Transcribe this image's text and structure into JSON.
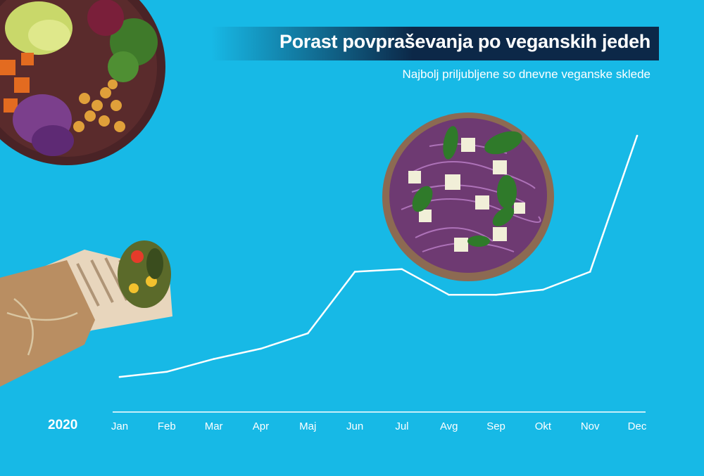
{
  "header": {
    "title": "Porast povpraševanja po veganskih jedeh",
    "subtitle": "Najbolj priljubljene so dnevne veganske sklede"
  },
  "year_label": "2020",
  "colors": {
    "background": "#17b9e6",
    "title_band": "#0c2848",
    "line": "#ffffff"
  },
  "chart_data": {
    "type": "line",
    "title": "Porast povpraševanja po veganskih jedeh",
    "subtitle": "Najbolj priljubljene so dnevne veganske sklede",
    "categories": [
      "Jan",
      "Feb",
      "Mar",
      "Apr",
      "Maj",
      "Jun",
      "Jul",
      "Avg",
      "Sep",
      "Okt",
      "Nov",
      "Dec"
    ],
    "series": [
      {
        "values": [
          6,
          8,
          13,
          17,
          23,
          47,
          48,
          38,
          38,
          40,
          47,
          100
        ]
      }
    ],
    "ylim": [
      0,
      100
    ],
    "grid": false,
    "legend": "none",
    "y_axis_labels": false
  },
  "illustrations": [
    "buddha-bowl-photo",
    "tortilla-wrap-photo",
    "red-cabbage-salad-photo"
  ]
}
